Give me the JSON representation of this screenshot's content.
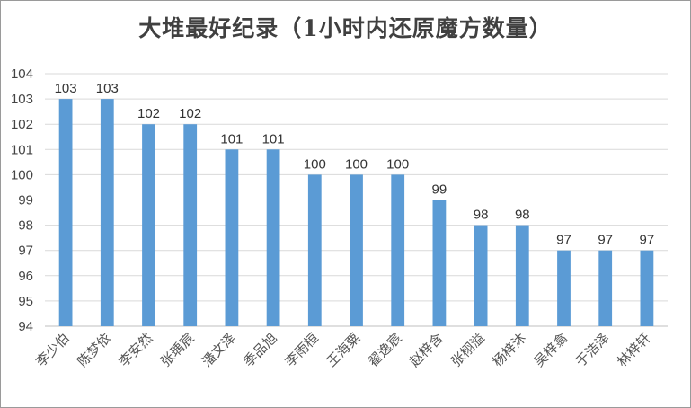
{
  "chart_data": {
    "type": "bar",
    "title": "大堆最好纪录（1小时内还原魔方数量）",
    "categories": [
      "李少伯",
      "陈梦依",
      "李安然",
      "张瑀宸",
      "潘文泽",
      "季品旭",
      "李雨桓",
      "王海粟",
      "翟逸宸",
      "赵梓含",
      "张栩溢",
      "杨梓沐",
      "吴梓翕",
      "于浩泽",
      "林梓轩"
    ],
    "values": [
      103,
      103,
      102,
      102,
      101,
      101,
      100,
      100,
      100,
      99,
      98,
      98,
      97,
      97,
      97
    ],
    "ylim": [
      94,
      104
    ],
    "yticks": [
      94,
      95,
      96,
      97,
      98,
      99,
      100,
      101,
      102,
      103,
      104
    ],
    "xlabel": "",
    "ylabel": "",
    "grid": true,
    "bar_color": "#5B9BD5",
    "data_labels": true
  }
}
